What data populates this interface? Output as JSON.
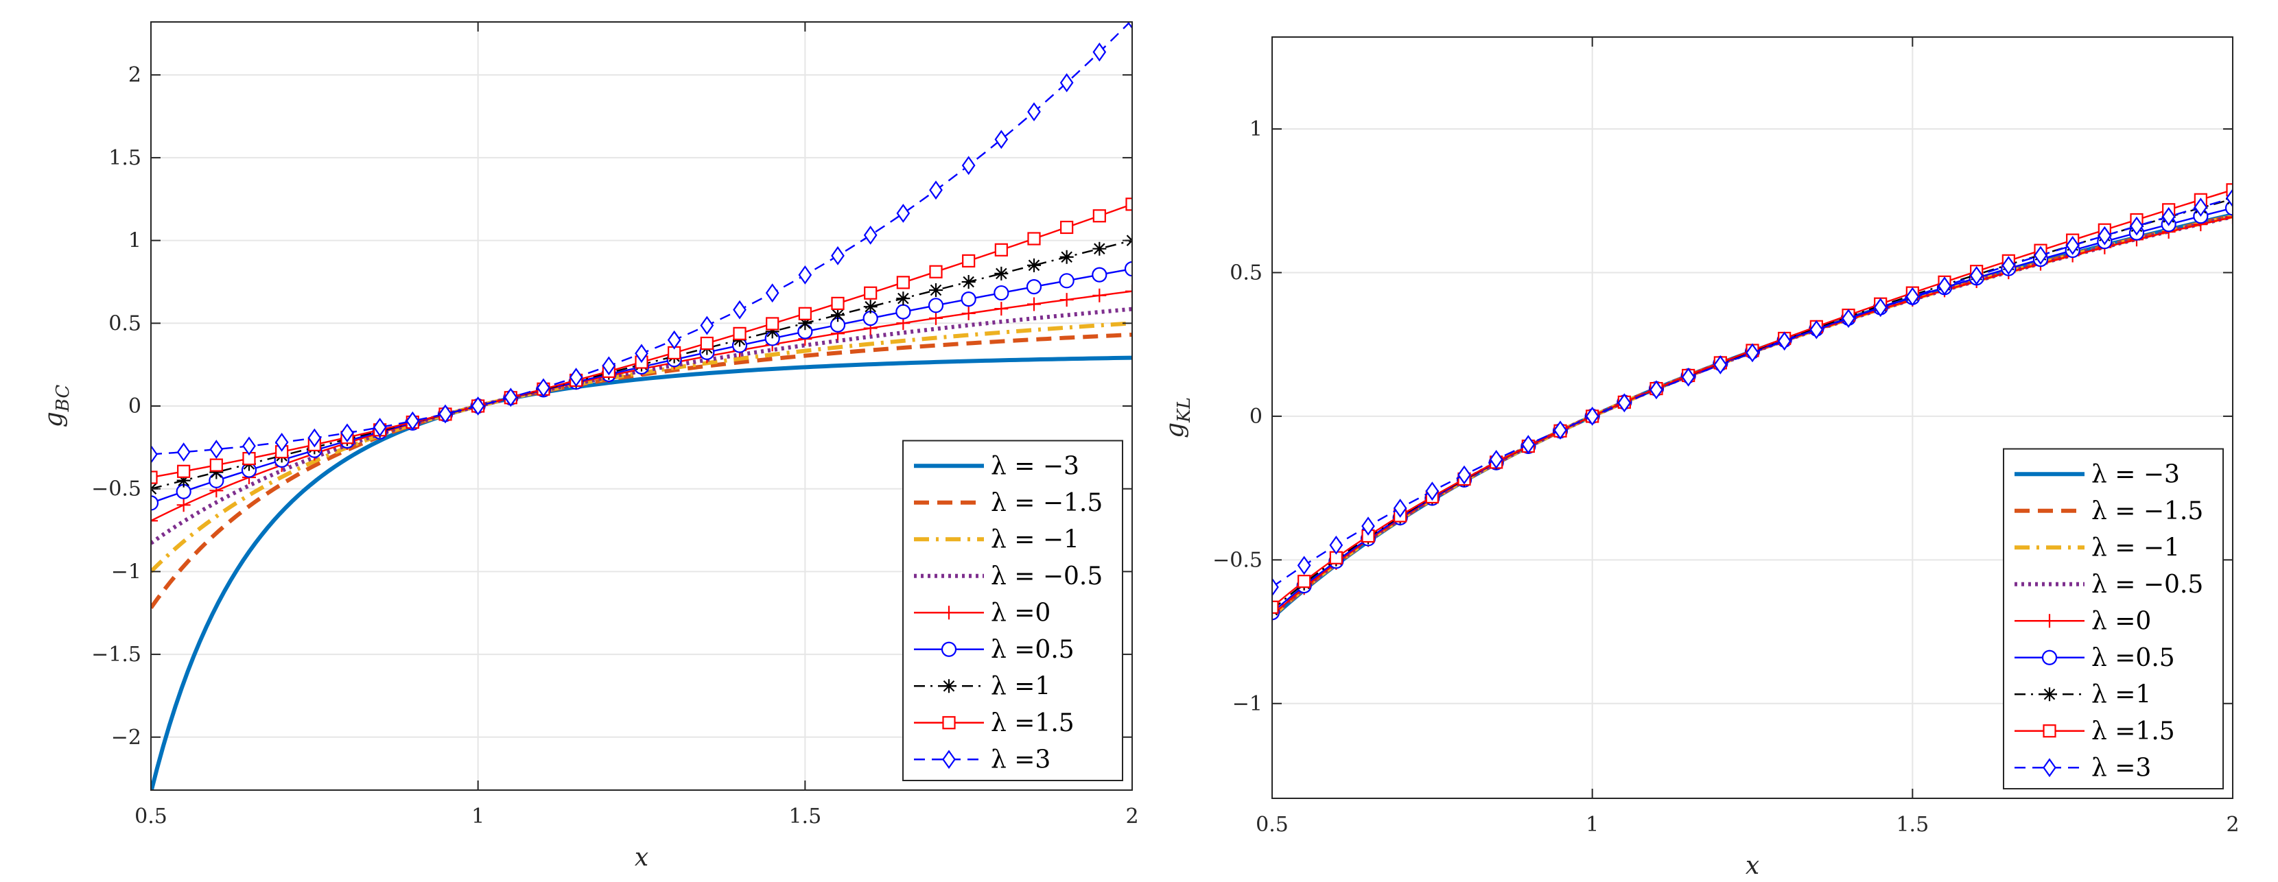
{
  "colors": {
    "blue": "#0072BD",
    "orange": "#D95319",
    "yellow": "#EDB120",
    "purple": "#7E2F8E",
    "red": "#FF0000",
    "marker_blue": "#0000FF",
    "black": "#000000",
    "grid": "#e6e6e6",
    "axis": "#262626"
  },
  "chart_data": [
    {
      "type": "line",
      "xlabel": "x",
      "ylabel_base": "g",
      "ylabel_sub": "BC",
      "xlim": [
        0.5,
        2
      ],
      "ylim": [
        -2.32,
        2.32
      ],
      "xticks": [
        0.5,
        1,
        1.5,
        2
      ],
      "xtick_labels": [
        "0.5",
        "1",
        "1.5",
        "2"
      ],
      "yticks": [
        -2,
        -1.5,
        -1,
        -0.5,
        0,
        0.5,
        1,
        1.5,
        2
      ],
      "ytick_labels": [
        "−2",
        "−1.5",
        "−1",
        "−0.5",
        "0",
        "0.5",
        "1",
        "1.5",
        "2"
      ],
      "grid": true,
      "legend_position": "bottom-right",
      "series": [
        {
          "name": "λ = −3",
          "lambda": -3,
          "style": "solid",
          "color": "#0072BD",
          "marker": "none",
          "thick": true
        },
        {
          "name": "λ = −1.5",
          "lambda": -1.5,
          "style": "dashed",
          "color": "#D95319",
          "marker": "none",
          "thick": true
        },
        {
          "name": "λ = −1",
          "lambda": -1,
          "style": "dashdot",
          "color": "#EDB120",
          "marker": "none",
          "thick": true
        },
        {
          "name": "λ = −0.5",
          "lambda": -0.5,
          "style": "dotted",
          "color": "#7E2F8E",
          "marker": "none",
          "thick": true
        },
        {
          "name": "λ =0",
          "lambda": 0,
          "style": "solid",
          "color": "#FF0000",
          "marker": "plus",
          "thick": false
        },
        {
          "name": "λ =0.5",
          "lambda": 0.5,
          "style": "solid",
          "color": "#0000FF",
          "marker": "circle",
          "thick": false
        },
        {
          "name": "λ =1",
          "lambda": 1,
          "style": "dashdot",
          "color": "#000000",
          "marker": "star",
          "thick": false
        },
        {
          "name": "λ =1.5",
          "lambda": 1.5,
          "style": "solid",
          "color": "#FF0000",
          "marker": "square",
          "thick": false
        },
        {
          "name": "λ =3",
          "lambda": 3,
          "style": "dashed",
          "color": "#0000FF",
          "marker": "diamond",
          "thick": false
        }
      ]
    },
    {
      "type": "line",
      "xlabel": "x",
      "ylabel_base": "g",
      "ylabel_sub": "KL",
      "xlim": [
        0.5,
        2
      ],
      "ylim": [
        -1.33,
        1.32
      ],
      "xticks": [
        0.5,
        1,
        1.5,
        2
      ],
      "xtick_labels": [
        "0.5",
        "1",
        "1.5",
        "2"
      ],
      "yticks": [
        -1,
        -0.5,
        0,
        0.5,
        1
      ],
      "ytick_labels": [
        "−1",
        "−0.5",
        "0",
        "0.5",
        "1"
      ],
      "grid": true,
      "legend_position": "bottom-right",
      "series": [
        {
          "name": "λ = −3",
          "lambda": -3,
          "style": "solid",
          "color": "#0072BD",
          "marker": "none",
          "thick": true
        },
        {
          "name": "λ = −1.5",
          "lambda": -1.5,
          "style": "dashed",
          "color": "#D95319",
          "marker": "none",
          "thick": true
        },
        {
          "name": "λ = −1",
          "lambda": -1,
          "style": "dashdot",
          "color": "#EDB120",
          "marker": "none",
          "thick": true
        },
        {
          "name": "λ = −0.5",
          "lambda": -0.5,
          "style": "dotted",
          "color": "#7E2F8E",
          "marker": "none",
          "thick": true
        },
        {
          "name": "λ =0",
          "lambda": 0,
          "style": "solid",
          "color": "#FF0000",
          "marker": "plus",
          "thick": false
        },
        {
          "name": "λ =0.5",
          "lambda": 0.5,
          "style": "solid",
          "color": "#0000FF",
          "marker": "circle",
          "thick": false
        },
        {
          "name": "λ =1",
          "lambda": 1,
          "style": "dashdot",
          "color": "#000000",
          "marker": "star",
          "thick": false
        },
        {
          "name": "λ =1.5",
          "lambda": 1.5,
          "style": "solid",
          "color": "#FF0000",
          "marker": "square",
          "thick": false
        },
        {
          "name": "λ =3",
          "lambda": 3,
          "style": "dashed",
          "color": "#0000FF",
          "marker": "diamond",
          "thick": false
        }
      ]
    }
  ]
}
